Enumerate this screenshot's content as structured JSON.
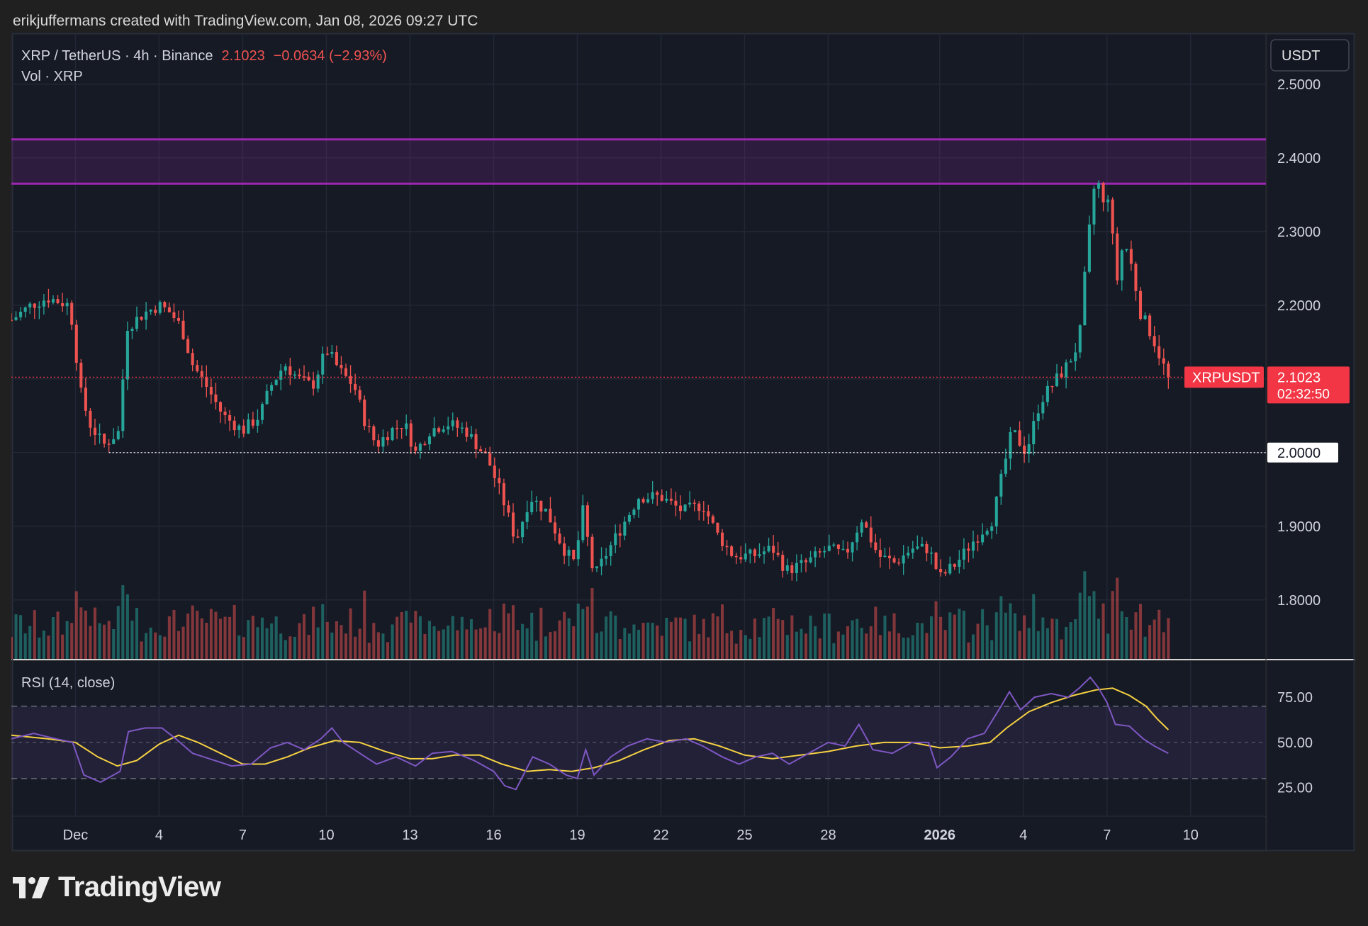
{
  "attribution": "erikjuffermans created with TradingView.com, Jan 08, 2026 09:27 UTC",
  "brand": "TradingView",
  "colors": {
    "up": "#26a69a",
    "down": "#ef5350",
    "zone": "#9c27b0",
    "rsi_line": "#7e57c2",
    "rsi_ma": "#f5d142",
    "price_tag": "#f23645"
  },
  "chart_data": {
    "type": "candlestick",
    "legend": {
      "symbol": "XRP / TetherUS · 4h · Binance",
      "last": "2.1023",
      "change": "−0.0634 (−2.93%)",
      "volume": "Vol · XRP"
    },
    "currency": "USDT",
    "ylim": [
      1.72,
      2.57
    ],
    "y_ticks": [
      "2.5000",
      "2.4000",
      "2.3000",
      "2.2000",
      "2.1000",
      "2.0000",
      "1.9000",
      "1.8000"
    ],
    "x_labels": [
      {
        "label": "Dec",
        "day": 0
      },
      {
        "label": "4",
        "day": 3
      },
      {
        "label": "7",
        "day": 6
      },
      {
        "label": "10",
        "day": 9
      },
      {
        "label": "13",
        "day": 12
      },
      {
        "label": "16",
        "day": 15
      },
      {
        "label": "19",
        "day": 18
      },
      {
        "label": "22",
        "day": 21
      },
      {
        "label": "25",
        "day": 24
      },
      {
        "label": "28",
        "day": 27
      },
      {
        "label": "2026",
        "day": 31
      },
      {
        "label": "4",
        "day": 34
      },
      {
        "label": "7",
        "day": 37
      },
      {
        "label": "10",
        "day": 40
      }
    ],
    "x_range_days": [
      -2.3,
      42.7
    ],
    "resistance_zone": {
      "low": 2.365,
      "high": 2.425
    },
    "support_level": {
      "price": 2.0,
      "label": "2.0000"
    },
    "last_price": {
      "price": 2.1023,
      "symbol": "XRPUSDT",
      "label": "2.1023",
      "countdown": "02:32:50"
    },
    "price_path": [
      {
        "day": -2.3,
        "price": 2.18
      },
      {
        "day": -1.6,
        "price": 2.2
      },
      {
        "day": -1.0,
        "price": 2.21
      },
      {
        "day": -0.2,
        "price": 2.2
      },
      {
        "day": 0.2,
        "price": 2.08
      },
      {
        "day": 0.5,
        "price": 2.04
      },
      {
        "day": 1.0,
        "price": 2.01
      },
      {
        "day": 1.6,
        "price": 2.03
      },
      {
        "day": 1.8,
        "price": 2.17
      },
      {
        "day": 2.5,
        "price": 2.19
      },
      {
        "day": 3.0,
        "price": 2.2
      },
      {
        "day": 3.4,
        "price": 2.19
      },
      {
        "day": 3.8,
        "price": 2.17
      },
      {
        "day": 4.2,
        "price": 2.12
      },
      {
        "day": 4.7,
        "price": 2.09
      },
      {
        "day": 5.3,
        "price": 2.05
      },
      {
        "day": 6.0,
        "price": 2.03
      },
      {
        "day": 6.6,
        "price": 2.05
      },
      {
        "day": 7.0,
        "price": 2.09
      },
      {
        "day": 7.5,
        "price": 2.12
      },
      {
        "day": 8.0,
        "price": 2.1
      },
      {
        "day": 8.5,
        "price": 2.09
      },
      {
        "day": 9.0,
        "price": 2.14
      },
      {
        "day": 9.5,
        "price": 2.11
      },
      {
        "day": 10.0,
        "price": 2.09
      },
      {
        "day": 10.4,
        "price": 2.04
      },
      {
        "day": 10.8,
        "price": 2.01
      },
      {
        "day": 11.3,
        "price": 2.03
      },
      {
        "day": 11.8,
        "price": 2.04
      },
      {
        "day": 12.2,
        "price": 2.0
      },
      {
        "day": 12.7,
        "price": 2.03
      },
      {
        "day": 13.3,
        "price": 2.04
      },
      {
        "day": 14.0,
        "price": 2.03
      },
      {
        "day": 14.8,
        "price": 1.99
      },
      {
        "day": 15.3,
        "price": 1.94
      },
      {
        "day": 15.8,
        "price": 1.88
      },
      {
        "day": 16.3,
        "price": 1.94
      },
      {
        "day": 16.9,
        "price": 1.92
      },
      {
        "day": 17.5,
        "price": 1.87
      },
      {
        "day": 17.9,
        "price": 1.85
      },
      {
        "day": 18.2,
        "price": 1.92
      },
      {
        "day": 18.6,
        "price": 1.83
      },
      {
        "day": 19.0,
        "price": 1.86
      },
      {
        "day": 19.6,
        "price": 1.9
      },
      {
        "day": 20.2,
        "price": 1.94
      },
      {
        "day": 21.0,
        "price": 1.94
      },
      {
        "day": 21.8,
        "price": 1.92
      },
      {
        "day": 22.5,
        "price": 1.93
      },
      {
        "day": 23.0,
        "price": 1.89
      },
      {
        "day": 23.6,
        "price": 1.86
      },
      {
        "day": 24.3,
        "price": 1.86
      },
      {
        "day": 25.0,
        "price": 1.87
      },
      {
        "day": 25.5,
        "price": 1.84
      },
      {
        "day": 26.2,
        "price": 1.85
      },
      {
        "day": 27.0,
        "price": 1.87
      },
      {
        "day": 27.6,
        "price": 1.86
      },
      {
        "day": 28.2,
        "price": 1.91
      },
      {
        "day": 28.8,
        "price": 1.86
      },
      {
        "day": 29.4,
        "price": 1.85
      },
      {
        "day": 30.0,
        "price": 1.87
      },
      {
        "day": 30.6,
        "price": 1.87
      },
      {
        "day": 31.0,
        "price": 1.83
      },
      {
        "day": 31.6,
        "price": 1.85
      },
      {
        "day": 32.2,
        "price": 1.88
      },
      {
        "day": 32.9,
        "price": 1.91
      },
      {
        "day": 33.3,
        "price": 1.98
      },
      {
        "day": 33.6,
        "price": 2.03
      },
      {
        "day": 34.1,
        "price": 2.0
      },
      {
        "day": 34.6,
        "price": 2.07
      },
      {
        "day": 35.0,
        "price": 2.09
      },
      {
        "day": 35.6,
        "price": 2.12
      },
      {
        "day": 36.0,
        "price": 2.15
      },
      {
        "day": 36.3,
        "price": 2.28
      },
      {
        "day": 36.6,
        "price": 2.38
      },
      {
        "day": 36.9,
        "price": 2.33
      },
      {
        "day": 37.1,
        "price": 2.36
      },
      {
        "day": 37.3,
        "price": 2.22
      },
      {
        "day": 37.6,
        "price": 2.29
      },
      {
        "day": 37.9,
        "price": 2.25
      },
      {
        "day": 38.2,
        "price": 2.19
      },
      {
        "day": 38.6,
        "price": 2.16
      },
      {
        "day": 39.0,
        "price": 2.12
      },
      {
        "day": 39.2,
        "price": 2.1023
      }
    ],
    "rsi": {
      "label": "RSI (14, close)",
      "ylim": [
        10,
        95
      ],
      "y_ticks": [
        "75.00",
        "50.00",
        "25.00"
      ],
      "bands": {
        "upper": 70,
        "middle": 50,
        "lower": 30
      },
      "path": [
        {
          "day": -2.3,
          "value": 52
        },
        {
          "day": -1.5,
          "value": 55
        },
        {
          "day": -0.7,
          "value": 52
        },
        {
          "day": -0.1,
          "value": 50
        },
        {
          "day": 0.3,
          "value": 32
        },
        {
          "day": 0.9,
          "value": 28
        },
        {
          "day": 1.6,
          "value": 34
        },
        {
          "day": 1.9,
          "value": 56
        },
        {
          "day": 2.5,
          "value": 58
        },
        {
          "day": 3.1,
          "value": 58
        },
        {
          "day": 3.6,
          "value": 52
        },
        {
          "day": 4.2,
          "value": 44
        },
        {
          "day": 5.0,
          "value": 40
        },
        {
          "day": 5.6,
          "value": 37
        },
        {
          "day": 6.3,
          "value": 38
        },
        {
          "day": 7.0,
          "value": 47
        },
        {
          "day": 7.6,
          "value": 50
        },
        {
          "day": 8.2,
          "value": 46
        },
        {
          "day": 8.8,
          "value": 52
        },
        {
          "day": 9.2,
          "value": 58
        },
        {
          "day": 9.6,
          "value": 50
        },
        {
          "day": 10.3,
          "value": 43
        },
        {
          "day": 10.8,
          "value": 38
        },
        {
          "day": 11.5,
          "value": 42
        },
        {
          "day": 12.2,
          "value": 37
        },
        {
          "day": 12.8,
          "value": 44
        },
        {
          "day": 13.5,
          "value": 45
        },
        {
          "day": 14.3,
          "value": 40
        },
        {
          "day": 15.0,
          "value": 34
        },
        {
          "day": 15.4,
          "value": 26
        },
        {
          "day": 15.8,
          "value": 24
        },
        {
          "day": 16.4,
          "value": 42
        },
        {
          "day": 17.0,
          "value": 38
        },
        {
          "day": 17.6,
          "value": 32
        },
        {
          "day": 18.0,
          "value": 30
        },
        {
          "day": 18.3,
          "value": 46
        },
        {
          "day": 18.6,
          "value": 32
        },
        {
          "day": 19.2,
          "value": 42
        },
        {
          "day": 19.8,
          "value": 48
        },
        {
          "day": 20.5,
          "value": 52
        },
        {
          "day": 21.2,
          "value": 50
        },
        {
          "day": 21.9,
          "value": 52
        },
        {
          "day": 22.5,
          "value": 48
        },
        {
          "day": 23.2,
          "value": 42
        },
        {
          "day": 23.8,
          "value": 38
        },
        {
          "day": 24.4,
          "value": 42
        },
        {
          "day": 25.0,
          "value": 44
        },
        {
          "day": 25.6,
          "value": 38
        },
        {
          "day": 26.3,
          "value": 44
        },
        {
          "day": 27.0,
          "value": 50
        },
        {
          "day": 27.6,
          "value": 48
        },
        {
          "day": 28.1,
          "value": 60
        },
        {
          "day": 28.6,
          "value": 46
        },
        {
          "day": 29.3,
          "value": 44
        },
        {
          "day": 30.0,
          "value": 50
        },
        {
          "day": 30.6,
          "value": 50
        },
        {
          "day": 30.9,
          "value": 36
        },
        {
          "day": 31.4,
          "value": 42
        },
        {
          "day": 32.0,
          "value": 52
        },
        {
          "day": 32.6,
          "value": 55
        },
        {
          "day": 33.2,
          "value": 70
        },
        {
          "day": 33.5,
          "value": 78
        },
        {
          "day": 33.9,
          "value": 68
        },
        {
          "day": 34.4,
          "value": 75
        },
        {
          "day": 35.0,
          "value": 77
        },
        {
          "day": 35.6,
          "value": 75
        },
        {
          "day": 36.0,
          "value": 80
        },
        {
          "day": 36.4,
          "value": 86
        },
        {
          "day": 36.7,
          "value": 80
        },
        {
          "day": 37.0,
          "value": 72
        },
        {
          "day": 37.3,
          "value": 60
        },
        {
          "day": 37.8,
          "value": 59
        },
        {
          "day": 38.3,
          "value": 52
        },
        {
          "day": 38.7,
          "value": 48
        },
        {
          "day": 39.2,
          "value": 44
        }
      ],
      "ma_path": [
        {
          "day": -2.3,
          "value": 54
        },
        {
          "day": -1.0,
          "value": 52
        },
        {
          "day": 0.0,
          "value": 50
        },
        {
          "day": 0.8,
          "value": 42
        },
        {
          "day": 1.5,
          "value": 37
        },
        {
          "day": 2.2,
          "value": 40
        },
        {
          "day": 3.0,
          "value": 49
        },
        {
          "day": 3.7,
          "value": 54
        },
        {
          "day": 4.4,
          "value": 50
        },
        {
          "day": 5.2,
          "value": 44
        },
        {
          "day": 6.0,
          "value": 38
        },
        {
          "day": 6.8,
          "value": 38
        },
        {
          "day": 7.6,
          "value": 42
        },
        {
          "day": 8.4,
          "value": 47
        },
        {
          "day": 9.3,
          "value": 51
        },
        {
          "day": 10.2,
          "value": 50
        },
        {
          "day": 11.1,
          "value": 45
        },
        {
          "day": 12.0,
          "value": 41
        },
        {
          "day": 12.8,
          "value": 41
        },
        {
          "day": 13.6,
          "value": 43
        },
        {
          "day": 14.5,
          "value": 43
        },
        {
          "day": 15.3,
          "value": 38
        },
        {
          "day": 16.2,
          "value": 34
        },
        {
          "day": 17.0,
          "value": 35
        },
        {
          "day": 17.8,
          "value": 34
        },
        {
          "day": 18.6,
          "value": 36
        },
        {
          "day": 19.5,
          "value": 40
        },
        {
          "day": 20.4,
          "value": 46
        },
        {
          "day": 21.3,
          "value": 51
        },
        {
          "day": 22.2,
          "value": 52
        },
        {
          "day": 23.1,
          "value": 48
        },
        {
          "day": 24.0,
          "value": 43
        },
        {
          "day": 25.0,
          "value": 41
        },
        {
          "day": 26.0,
          "value": 43
        },
        {
          "day": 27.0,
          "value": 45
        },
        {
          "day": 28.0,
          "value": 48
        },
        {
          "day": 29.0,
          "value": 50
        },
        {
          "day": 30.0,
          "value": 50
        },
        {
          "day": 31.0,
          "value": 47
        },
        {
          "day": 32.0,
          "value": 48
        },
        {
          "day": 32.8,
          "value": 50
        },
        {
          "day": 33.4,
          "value": 58
        },
        {
          "day": 34.2,
          "value": 67
        },
        {
          "day": 35.0,
          "value": 72
        },
        {
          "day": 35.8,
          "value": 76
        },
        {
          "day": 36.6,
          "value": 79
        },
        {
          "day": 37.2,
          "value": 80
        },
        {
          "day": 37.8,
          "value": 76
        },
        {
          "day": 38.4,
          "value": 70
        },
        {
          "day": 38.8,
          "value": 63
        },
        {
          "day": 39.2,
          "value": 57
        }
      ]
    }
  }
}
